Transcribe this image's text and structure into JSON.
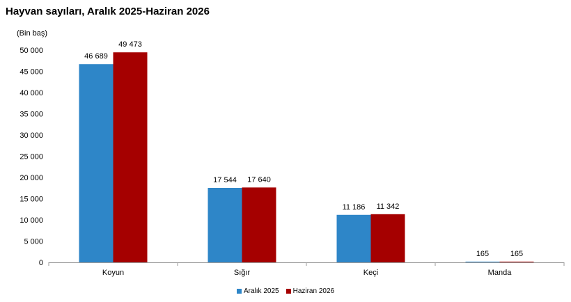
{
  "chart_data": {
    "type": "bar",
    "title": "Hayvan sayıları, Aralık 2025-Haziran 2026",
    "unit_label": "(Bin baş)",
    "categories": [
      "Koyun",
      "Sığır",
      "Keçi",
      "Manda"
    ],
    "series": [
      {
        "name": "Aralık 2025",
        "values": [
          46689,
          17544,
          11186,
          165
        ],
        "labels": [
          "46 689",
          "17 544",
          "11 186",
          "165"
        ],
        "color": "#2E86C8"
      },
      {
        "name": "Haziran 2026",
        "values": [
          49473,
          17640,
          11342,
          165
        ],
        "labels": [
          "49 473",
          "17 640",
          "11 342",
          "165"
        ],
        "color": "#A50000"
      }
    ],
    "ylim": [
      0,
      50000
    ],
    "yticks": [
      0,
      5000,
      10000,
      15000,
      20000,
      25000,
      30000,
      35000,
      40000,
      45000,
      50000
    ],
    "ytick_labels": [
      "0",
      "5 000",
      "10 000",
      "15 000",
      "20 000",
      "25 000",
      "30 000",
      "35 000",
      "40 000",
      "45 000",
      "50 000"
    ],
    "grid": false,
    "legend_position": "bottom"
  }
}
